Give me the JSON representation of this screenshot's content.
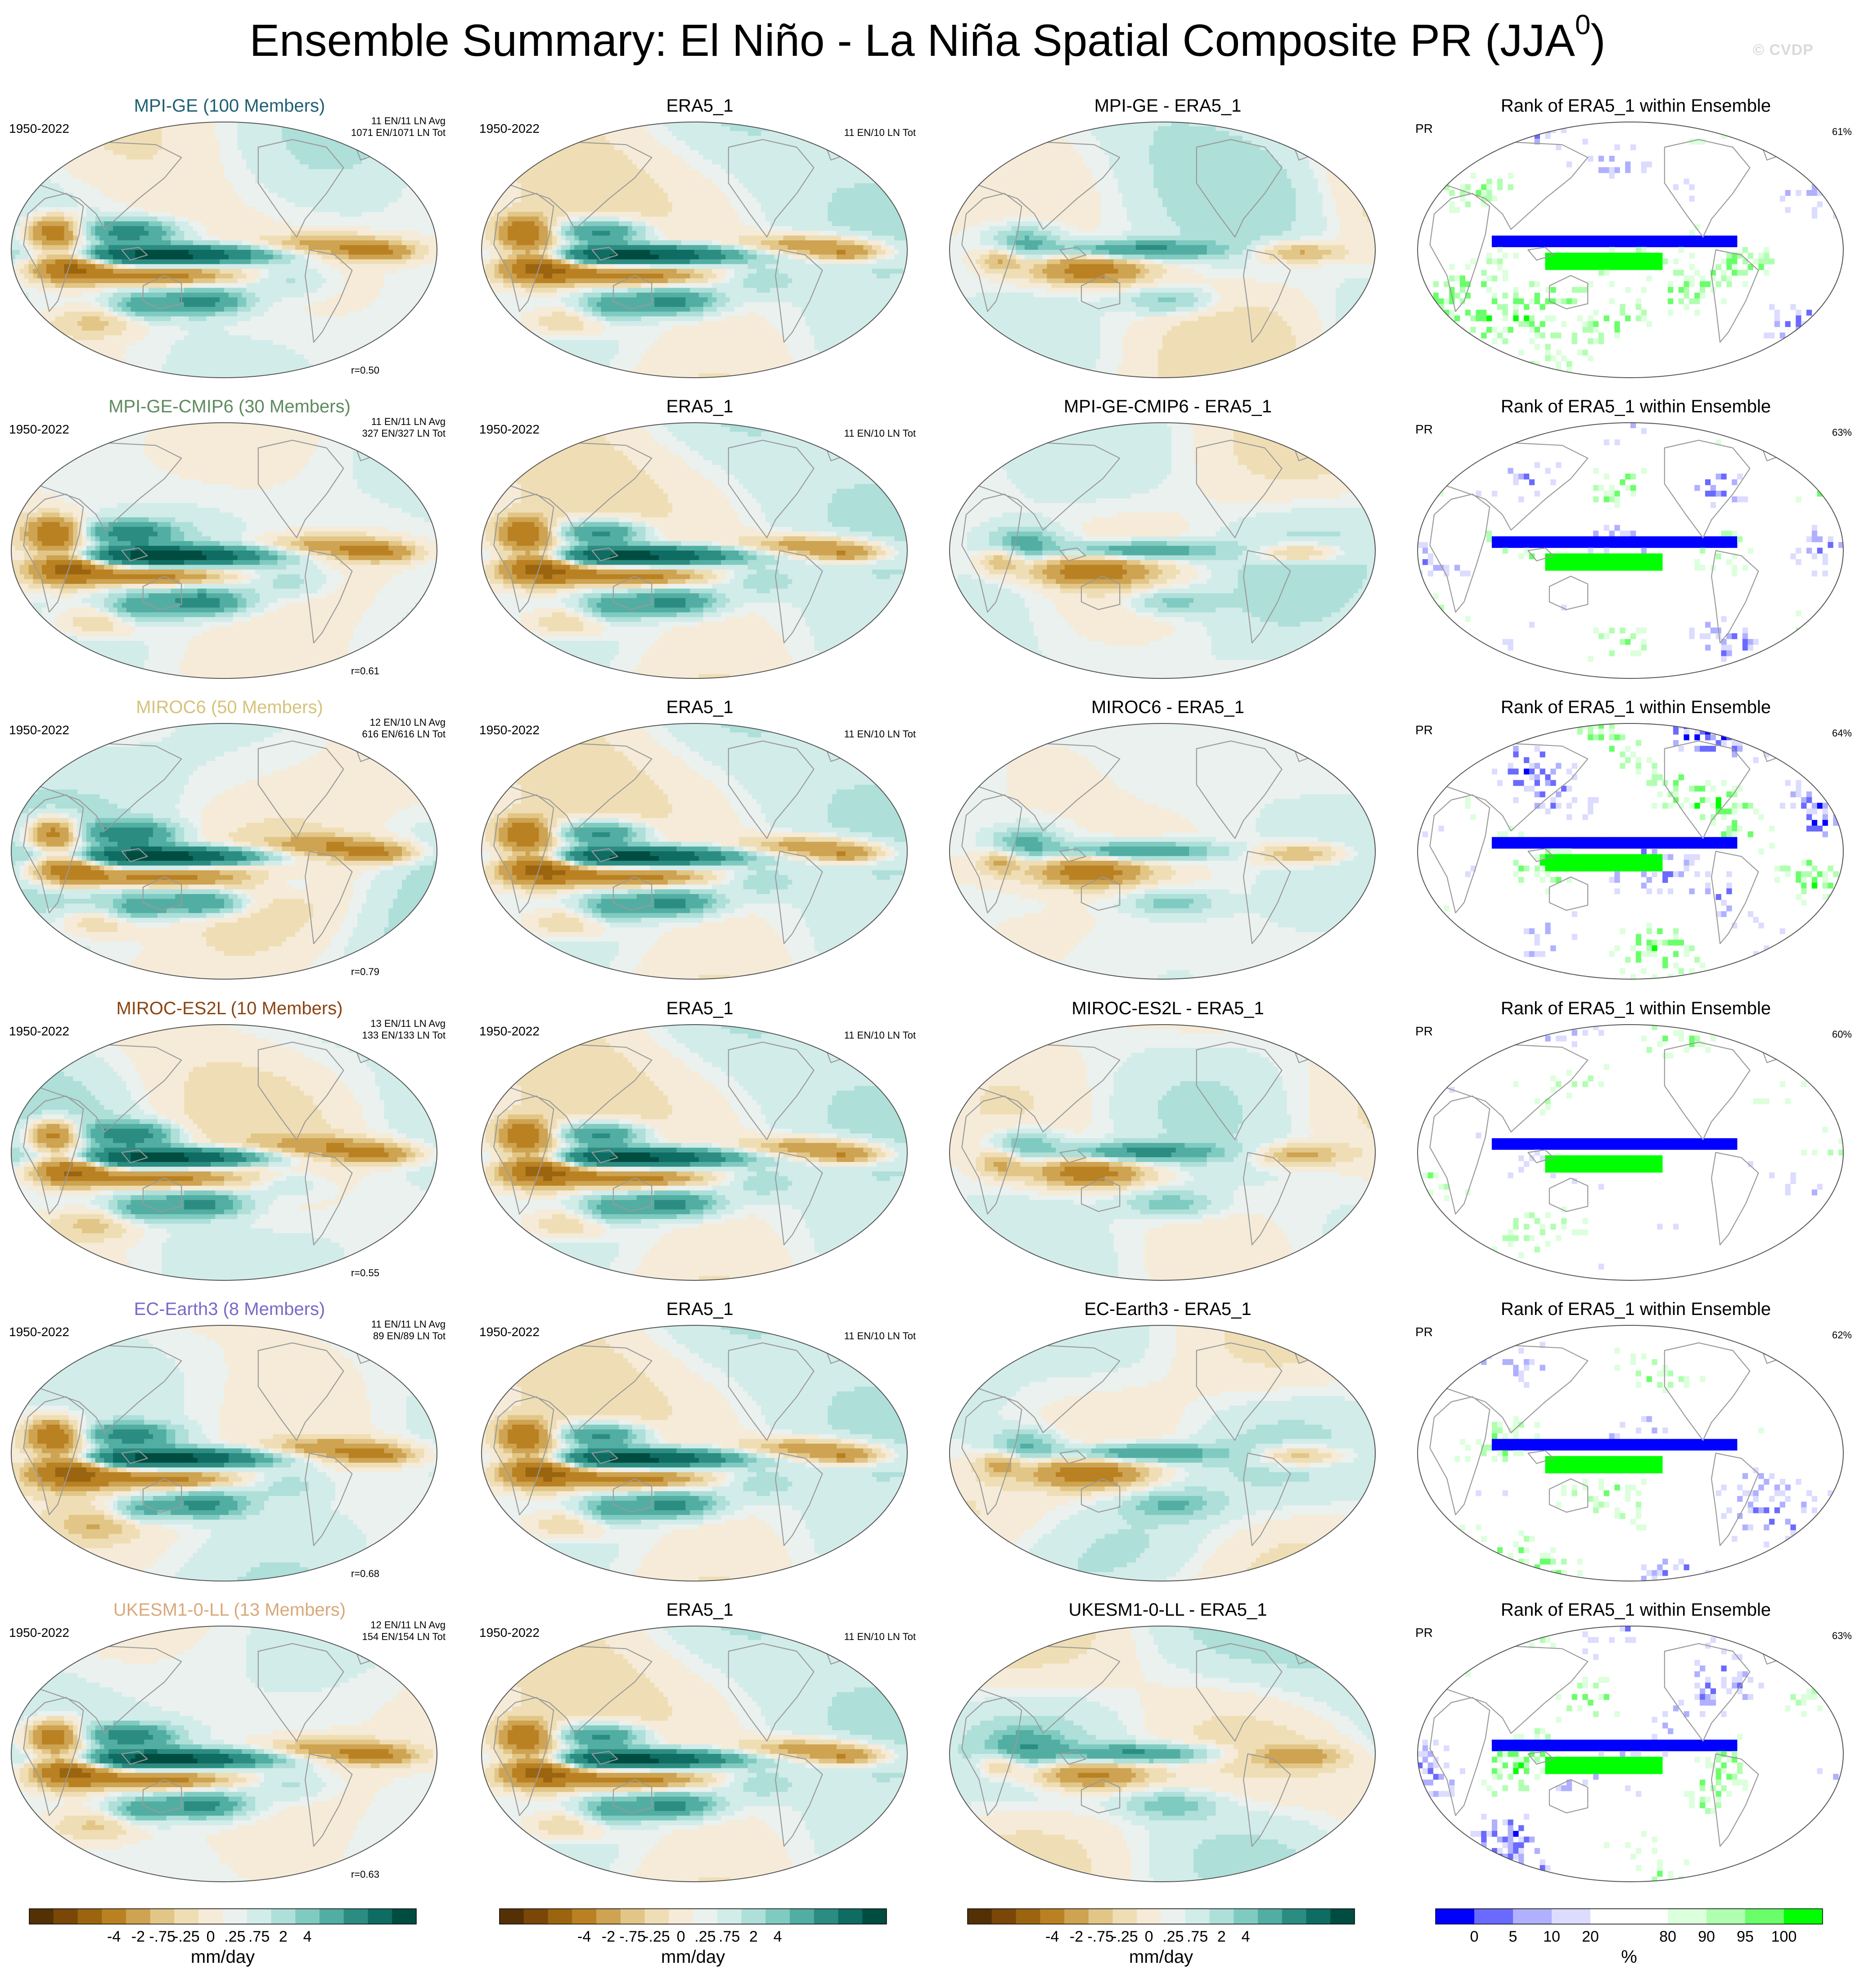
{
  "title": "Ensemble Summary: El Niño - La Niña Spatial Composite PR (JJA",
  "title_superscript": "0",
  "title_close": ")",
  "watermark": "© CVDP",
  "colors": {
    "diverging": [
      "#543005",
      "#7a4709",
      "#9b640f",
      "#b98122",
      "#cea351",
      "#e2c687",
      "#efdeb5",
      "#f5ebd8",
      "#eaf1ee",
      "#d2ecea",
      "#aedfd9",
      "#80cbc1",
      "#52aea2",
      "#2b8c82",
      "#0f6c62",
      "#014c40"
    ],
    "rank": [
      "#0000ff",
      "#6a6aff",
      "#b0b0ff",
      "#dcdcff",
      "#ffffff",
      "#ffffff",
      "#dcffdc",
      "#b0ffb0",
      "#6aff6a",
      "#00ff00"
    ],
    "coast": "#9a9a9a",
    "outline": "#555555"
  },
  "rows": [
    {
      "model": {
        "title": "MPI-GE (100 Members)",
        "color": "#1f5f73",
        "years": "1950-2022",
        "info1": "11 EN/11 LN Avg",
        "info2": "1071 EN/1071 LN Tot",
        "r": "r=0.50"
      },
      "obs": {
        "title": "ERA5_1",
        "years": "1950-2022",
        "info": "11 EN/10 LN Tot"
      },
      "diff": {
        "title": "MPI-GE - ERA5_1"
      },
      "rank": {
        "title": "Rank of ERA5_1 within Ensemble",
        "var": "PR",
        "pct": "61%"
      }
    },
    {
      "model": {
        "title": "MPI-GE-CMIP6 (30 Members)",
        "color": "#5e8a5e",
        "years": "1950-2022",
        "info1": "11 EN/11 LN Avg",
        "info2": "327 EN/327 LN Tot",
        "r": "r=0.61"
      },
      "obs": {
        "title": "ERA5_1",
        "years": "1950-2022",
        "info": "11 EN/10 LN Tot"
      },
      "diff": {
        "title": "MPI-GE-CMIP6 - ERA5_1"
      },
      "rank": {
        "title": "Rank of ERA5_1 within Ensemble",
        "var": "PR",
        "pct": "63%"
      }
    },
    {
      "model": {
        "title": "MIROC6 (50 Members)",
        "color": "#d6c27a",
        "years": "1950-2022",
        "info1": "12 EN/10 LN Avg",
        "info2": "616 EN/616 LN Tot",
        "r": "r=0.79"
      },
      "obs": {
        "title": "ERA5_1",
        "years": "1950-2022",
        "info": "11 EN/10 LN Tot"
      },
      "diff": {
        "title": "MIROC6 - ERA5_1"
      },
      "rank": {
        "title": "Rank of ERA5_1 within Ensemble",
        "var": "PR",
        "pct": "64%"
      }
    },
    {
      "model": {
        "title": "MIROC-ES2L (10 Members)",
        "color": "#8b4513",
        "years": "1950-2022",
        "info1": "13 EN/11 LN Avg",
        "info2": "133 EN/133 LN Tot",
        "r": "r=0.55"
      },
      "obs": {
        "title": "ERA5_1",
        "years": "1950-2022",
        "info": "11 EN/10 LN Tot"
      },
      "diff": {
        "title": "MIROC-ES2L - ERA5_1"
      },
      "rank": {
        "title": "Rank of ERA5_1 within Ensemble",
        "var": "PR",
        "pct": "60%"
      }
    },
    {
      "model": {
        "title": "EC-Earth3 (8 Members)",
        "color": "#7b68c8",
        "years": "1950-2022",
        "info1": "11 EN/11 LN Avg",
        "info2": "89 EN/89 LN Tot",
        "r": "r=0.68"
      },
      "obs": {
        "title": "ERA5_1",
        "years": "1950-2022",
        "info": "11 EN/10 LN Tot"
      },
      "diff": {
        "title": "EC-Earth3 - ERA5_1"
      },
      "rank": {
        "title": "Rank of ERA5_1 within Ensemble",
        "var": "PR",
        "pct": "62%"
      }
    },
    {
      "model": {
        "title": "UKESM1-0-LL (13 Members)",
        "color": "#d9a97a",
        "years": "1950-2022",
        "info1": "12 EN/11 LN Avg",
        "info2": "154 EN/154 LN Tot",
        "r": "r=0.63"
      },
      "obs": {
        "title": "ERA5_1",
        "years": "1950-2022",
        "info": "11 EN/10 LN Tot"
      },
      "diff": {
        "title": "UKESM1-0-LL - ERA5_1"
      },
      "rank": {
        "title": "Rank of ERA5_1 within Ensemble",
        "var": "PR",
        "pct": "63%"
      }
    }
  ],
  "colorbars": {
    "precip": {
      "ticks": [
        "-4",
        "-2",
        "-.75",
        "-.25",
        "0",
        ".25",
        ".75",
        "2",
        "4"
      ],
      "unit": "mm/day"
    },
    "rank": {
      "ticks": [
        "0",
        "5",
        "10",
        "20",
        "80",
        "90",
        "95",
        "100"
      ],
      "unit": "%"
    }
  },
  "chart_data": {
    "type": "heatmap",
    "title": "Ensemble Summary: El Niño - La Niña Spatial Composite PR (JJA0)",
    "projection": "Robinson (global map panels)",
    "columns": [
      "ensemble mean composite",
      "ERA5_1 observed composite",
      "ensemble mean minus ERA5_1",
      "rank of ERA5_1 within ensemble"
    ],
    "pattern_correlations": [
      {
        "model": "MPI-GE",
        "r": 0.5,
        "rank_pct": 61
      },
      {
        "model": "MPI-GE-CMIP6",
        "r": 0.61,
        "rank_pct": 63
      },
      {
        "model": "MIROC6",
        "r": 0.79,
        "rank_pct": 64
      },
      {
        "model": "MIROC-ES2L",
        "r": 0.55,
        "rank_pct": 60
      },
      {
        "model": "EC-Earth3",
        "r": 0.68,
        "rank_pct": 62
      },
      {
        "model": "UKESM1-0-LL",
        "r": 0.63,
        "rank_pct": 63
      }
    ],
    "precip_levels_mm_per_day": [
      -4,
      -2,
      -0.75,
      -0.25,
      0,
      0.25,
      0.75,
      2,
      4
    ],
    "rank_levels_percent": [
      0,
      5,
      10,
      20,
      80,
      90,
      95,
      100
    ]
  }
}
